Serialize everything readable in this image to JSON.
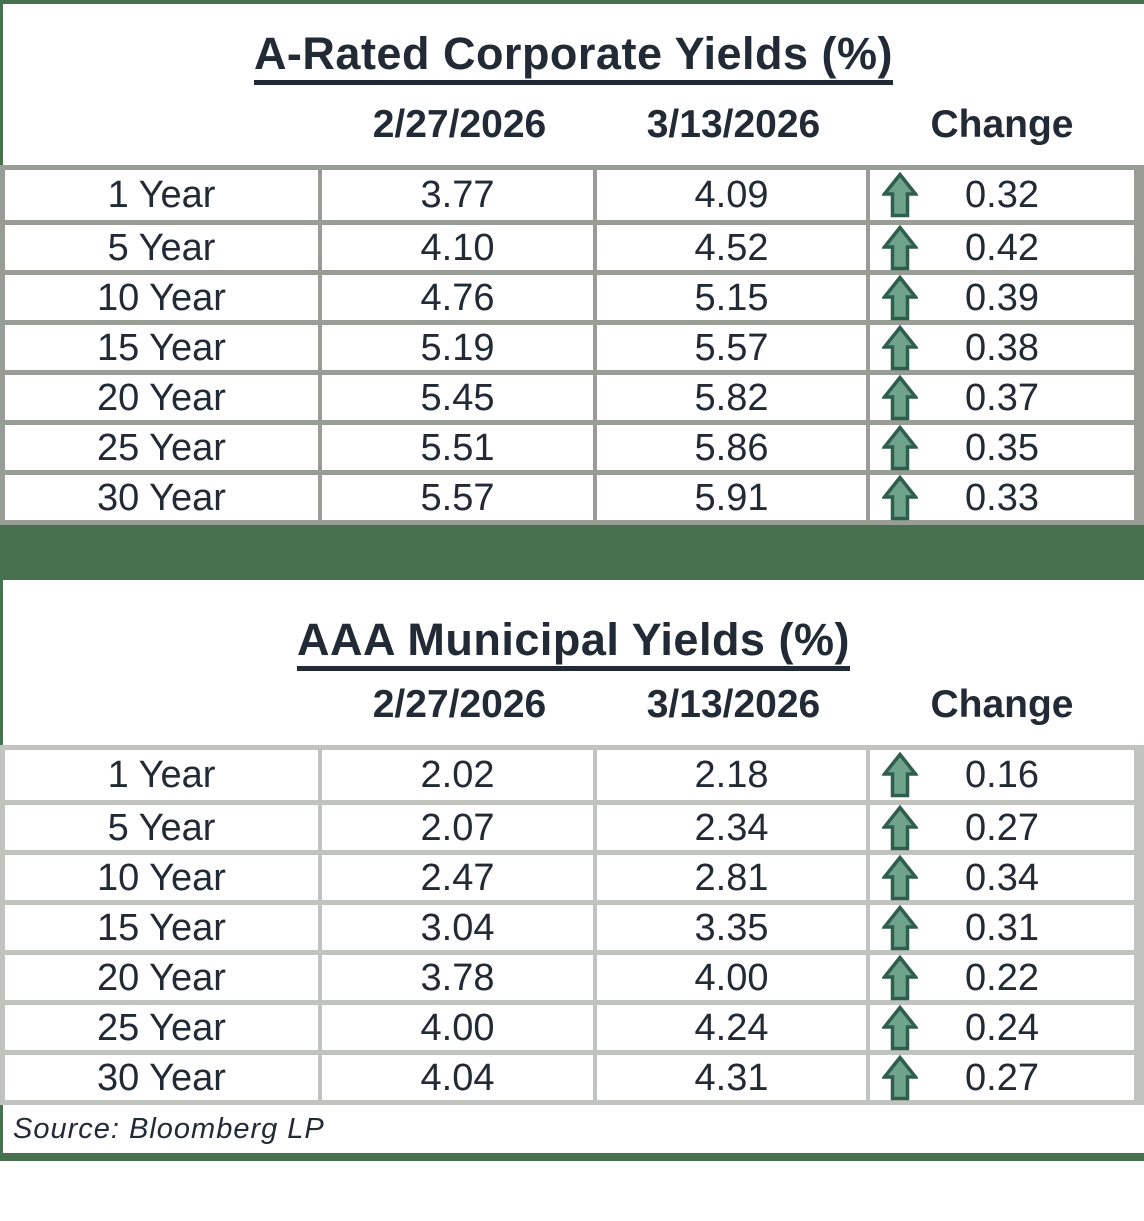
{
  "colors": {
    "frame_green": "#47714F",
    "table1_border": "#989E96",
    "table2_border": "#C1C4BE",
    "text": "#212A35",
    "arrow_fill": "#6FA38B",
    "arrow_outline": "#2E5F4D"
  },
  "footer": {
    "source_note": "Source: Bloomberg LP"
  },
  "chart_data": [
    {
      "type": "table",
      "title": "A-Rated Corporate Yields (%)",
      "columns": [
        "",
        "2/27/2026",
        "3/13/2026",
        "Change"
      ],
      "change_icon": "up-arrow",
      "change_direction": "up",
      "rows": [
        [
          "1 Year",
          3.77,
          4.09,
          0.32
        ],
        [
          "5 Year",
          4.1,
          4.52,
          0.42
        ],
        [
          "10 Year",
          4.76,
          5.15,
          0.39
        ],
        [
          "15 Year",
          5.19,
          5.57,
          0.38
        ],
        [
          "20 Year",
          5.45,
          5.82,
          0.37
        ],
        [
          "25 Year",
          5.51,
          5.86,
          0.35
        ],
        [
          "30 Year",
          5.57,
          5.91,
          0.33
        ]
      ]
    },
    {
      "type": "table",
      "title": "AAA Municipal Yields (%)",
      "columns": [
        "",
        "2/27/2026",
        "3/13/2026",
        "Change"
      ],
      "change_icon": "up-arrow",
      "change_direction": "up",
      "rows": [
        [
          "1 Year",
          2.02,
          2.18,
          0.16
        ],
        [
          "5 Year",
          2.07,
          2.34,
          0.27
        ],
        [
          "10 Year",
          2.47,
          2.81,
          0.34
        ],
        [
          "15 Year",
          3.04,
          3.35,
          0.31
        ],
        [
          "20 Year",
          3.78,
          4.0,
          0.22
        ],
        [
          "25 Year",
          4.0,
          4.24,
          0.24
        ],
        [
          "30 Year",
          4.04,
          4.31,
          0.27
        ]
      ]
    }
  ]
}
